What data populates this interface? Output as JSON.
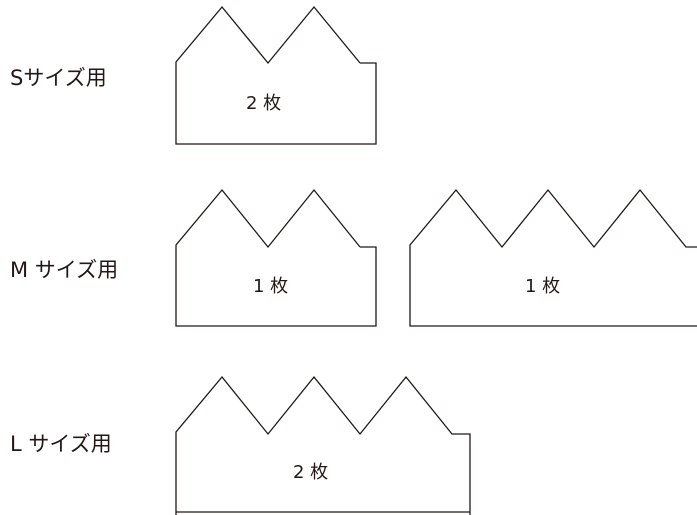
{
  "rows": [
    {
      "label": "Sサイズ用",
      "pieces": [
        {
          "count": "2 枚"
        }
      ]
    },
    {
      "label": "M サイズ用",
      "pieces": [
        {
          "count": "1 枚"
        },
        {
          "count": "1 枚"
        }
      ]
    },
    {
      "label": "L サイズ用",
      "pieces": [
        {
          "count": "2 枚"
        }
      ]
    }
  ],
  "colors": {
    "line": "#231815",
    "text": "#231815",
    "background": "#ffffff"
  }
}
